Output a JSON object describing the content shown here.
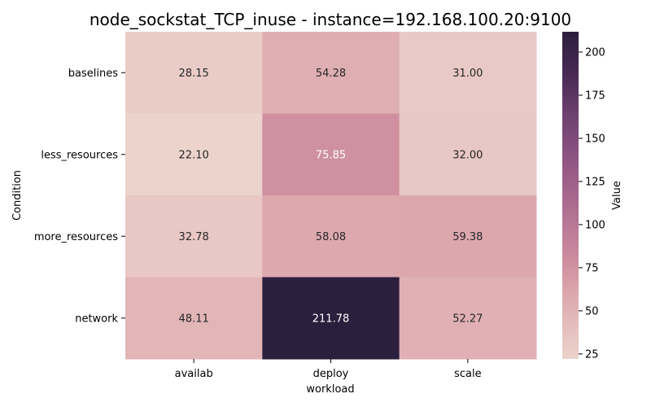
{
  "chart_data": {
    "type": "heatmap",
    "title": "node_sockstat_TCP_inuse - instance=192.168.100.20:9100",
    "xlabel": "workload",
    "ylabel": "Condition",
    "x_categories": [
      "availab",
      "deploy",
      "scale"
    ],
    "y_categories": [
      "baselines",
      "less_resources",
      "more_resources",
      "network"
    ],
    "values": [
      [
        28.15,
        54.28,
        31.0
      ],
      [
        22.1,
        75.85,
        32.0
      ],
      [
        32.78,
        58.08,
        59.38
      ],
      [
        48.11,
        211.78,
        52.27
      ]
    ],
    "value_format": "2f",
    "colorbar": {
      "label": "Value",
      "ticks": [
        25,
        50,
        75,
        100,
        125,
        150,
        175,
        200
      ],
      "range": [
        22.1,
        211.78
      ]
    }
  }
}
